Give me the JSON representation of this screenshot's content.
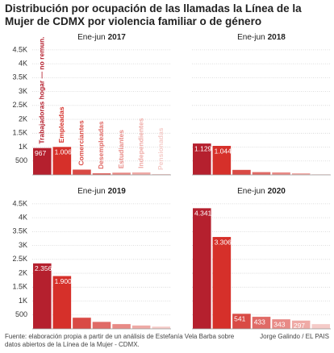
{
  "chart_data": [
    {
      "type": "bar",
      "title_prefix": "Ene-jun",
      "title_year": "2017",
      "categories": [
        "Trabajadoras hogar — no remun.",
        "Empleadas",
        "Comerciantes",
        "Desempleadas",
        "Estudiantes",
        "Independientes",
        "Pensionadas"
      ],
      "values": [
        967,
        1006,
        190,
        60,
        80,
        90,
        30
      ],
      "value_labels": [
        "967",
        "1.006",
        null,
        null,
        null,
        null,
        null
      ],
      "colors": [
        "#b5202e",
        "#d6302a",
        "#d94a45",
        "#e06a66",
        "#e88a86",
        "#efaaa6",
        "#f5cbc8"
      ],
      "ylim": [
        0,
        4700
      ],
      "yticks": [
        500,
        {
          "value": 1000,
          "label": "1K"
        },
        {
          "value": 1500,
          "label": "1.5K"
        },
        {
          "value": 2000,
          "label": "2K"
        },
        {
          "value": 2500,
          "label": "2.5K"
        },
        {
          "value": 3000,
          "label": "3K"
        },
        {
          "value": 3500,
          "label": "3.5K"
        },
        {
          "value": 4000,
          "label": "4K"
        },
        {
          "value": 4500,
          "label": "4.5K"
        }
      ],
      "grid": true
    },
    {
      "type": "bar",
      "title_prefix": "Ene-jun",
      "title_year": "2018",
      "values": [
        1129,
        1044,
        180,
        100,
        90,
        60,
        20
      ],
      "value_labels": [
        "1.129",
        "1.044",
        null,
        null,
        null,
        null,
        null
      ],
      "colors": [
        "#b5202e",
        "#d6302a",
        "#d94a45",
        "#e06a66",
        "#e88a86",
        "#efaaa6",
        "#f5cbc8"
      ],
      "ylim": [
        0,
        4700
      ],
      "yticks": [
        500,
        1000,
        1500,
        2000,
        2500,
        3000,
        3500,
        4000,
        4500
      ],
      "grid": true
    },
    {
      "type": "bar",
      "title_prefix": "Ene-jun",
      "title_year": "2019",
      "values": [
        2356,
        1900,
        400,
        250,
        170,
        120,
        80
      ],
      "value_labels": [
        "2.356",
        "1.900",
        null,
        null,
        null,
        null,
        null
      ],
      "colors": [
        "#b5202e",
        "#d6302a",
        "#d94a45",
        "#e06a66",
        "#e88a86",
        "#efaaa6",
        "#f5cbc8"
      ],
      "ylim": [
        0,
        4700
      ],
      "yticks": [
        500,
        {
          "value": 1000,
          "label": "1K"
        },
        {
          "value": 1500,
          "label": "1.5K"
        },
        {
          "value": 2000,
          "label": "2K"
        },
        {
          "value": 2500,
          "label": "2.5K"
        },
        {
          "value": 3000,
          "label": "3K"
        },
        {
          "value": 3500,
          "label": "3.5K"
        },
        {
          "value": 4000,
          "label": "4K"
        },
        {
          "value": 4500,
          "label": "4.5K"
        }
      ],
      "grid": true
    },
    {
      "type": "bar",
      "title_prefix": "Ene-jun",
      "title_year": "2020",
      "values": [
        4341,
        3306,
        541,
        433,
        343,
        297,
        170
      ],
      "value_labels": [
        "4.341",
        "3.306",
        "541",
        "433",
        "343",
        "297",
        null
      ],
      "colors": [
        "#b5202e",
        "#d6302a",
        "#d94a45",
        "#e06a66",
        "#e88a86",
        "#efaaa6",
        "#f5cbc8"
      ],
      "ylim": [
        0,
        4700
      ],
      "yticks": [
        500,
        1000,
        1500,
        2000,
        2500,
        3000,
        3500,
        4000,
        4500
      ],
      "grid": true
    }
  ],
  "title": "Distribución por ocupación de las llamadas la Línea de la Mujer de CDMX por violencia familiar o de género",
  "source": "Fuente: elaboración propia a partir de un análisis de Estefanía Vela Barba sobre datos abiertos de la Línea de la Mujer - CDMX.",
  "credit": "Jorge Galindo / EL PAIS"
}
